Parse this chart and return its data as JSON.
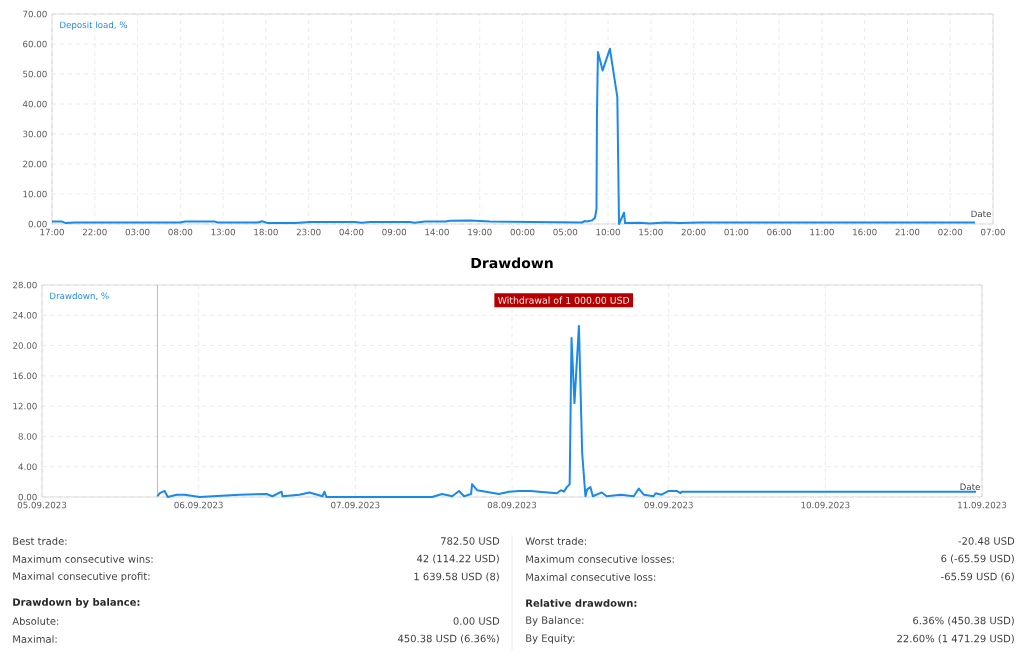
{
  "chart_data": [
    {
      "type": "line",
      "ylabel": "Deposit load, %",
      "xlabel": "Date",
      "color": "#1a8ae8",
      "grid": true,
      "xlim": [
        "2023-09-05T17:00",
        "2023-09-10T07:00"
      ],
      "ylim": [
        0,
        70
      ],
      "xticks": [
        {
          "value": "2023-09-05T17:00",
          "label": "17:00"
        },
        {
          "value": "2023-09-05T22:00",
          "label": "22:00"
        },
        {
          "value": "2023-09-06T03:00",
          "label": "03:00"
        },
        {
          "value": "2023-09-06T08:00",
          "label": "08:00"
        },
        {
          "value": "2023-09-06T13:00",
          "label": "13:00"
        },
        {
          "value": "2023-09-06T18:00",
          "label": "18:00"
        },
        {
          "value": "2023-09-06T23:00",
          "label": "23:00"
        },
        {
          "value": "2023-09-07T04:00",
          "label": "04:00"
        },
        {
          "value": "2023-09-07T09:00",
          "label": "09:00"
        },
        {
          "value": "2023-09-07T14:00",
          "label": "14:00"
        },
        {
          "value": "2023-09-07T19:00",
          "label": "19:00"
        },
        {
          "value": "2023-09-08T00:00",
          "label": "00:00"
        },
        {
          "value": "2023-09-08T05:00",
          "label": "05:00"
        },
        {
          "value": "2023-09-08T10:00",
          "label": "10:00"
        },
        {
          "value": "2023-09-08T15:00",
          "label": "15:00"
        },
        {
          "value": "2023-09-08T20:00",
          "label": "20:00"
        },
        {
          "value": "2023-09-09T01:00",
          "label": "01:00"
        },
        {
          "value": "2023-09-09T06:00",
          "label": "06:00"
        },
        {
          "value": "2023-09-09T11:00",
          "label": "11:00"
        },
        {
          "value": "2023-09-09T16:00",
          "label": "16:00"
        },
        {
          "value": "2023-09-09T21:00",
          "label": "21:00"
        },
        {
          "value": "2023-09-10T02:00",
          "label": "02:00"
        },
        {
          "value": "2023-09-10T07:00",
          "label": "07:00"
        }
      ],
      "yticks": [
        {
          "value": 0,
          "label": "0.00"
        },
        {
          "value": 10,
          "label": "10.00"
        },
        {
          "value": 20,
          "label": "20.00"
        },
        {
          "value": 30,
          "label": "30.00"
        },
        {
          "value": 40,
          "label": "40.00"
        },
        {
          "value": 50,
          "label": "50.00"
        },
        {
          "value": 60,
          "label": "60.00"
        },
        {
          "value": 70,
          "label": "70.00"
        }
      ],
      "x": [
        "2023-09-05T17:00",
        "2023-09-05T18:10",
        "2023-09-05T18:38",
        "2023-09-05T19:41",
        "2023-09-06T07:58",
        "2023-09-06T08:33",
        "2023-09-06T12:03",
        "2023-09-06T12:24",
        "2023-09-06T17:05",
        "2023-09-06T17:33",
        "2023-09-06T18:15",
        "2023-09-06T21:24",
        "2023-09-06T23:10",
        "2023-09-07T04:24",
        "2023-09-07T05:12",
        "2023-09-07T06:12",
        "2023-09-07T10:48",
        "2023-09-07T11:24",
        "2023-09-07T12:36",
        "2023-09-07T15:00",
        "2023-09-07T15:30",
        "2023-09-07T17:54",
        "2023-09-07T20:12",
        "2023-09-08T06:57",
        "2023-09-08T07:18",
        "2023-09-08T07:32",
        "2023-09-08T08:07",
        "2023-09-08T08:28",
        "2023-09-08T08:39",
        "2023-09-08T08:42",
        "2023-09-08T08:49",
        "2023-09-08T09:22",
        "2023-09-08T10:13",
        "2023-09-08T11:05",
        "2023-09-08T11:17",
        "2023-09-08T11:52",
        "2023-09-08T11:59",
        "2023-09-08T13:44",
        "2023-09-08T14:54",
        "2023-09-08T16:39",
        "2023-09-08T18:25",
        "2023-09-08T20:44",
        "2023-09-10T04:54"
      ],
      "values": [
        0.8,
        0.8,
        0.3,
        0.5,
        0.5,
        0.8,
        0.8,
        0.5,
        0.5,
        0.9,
        0.3,
        0.3,
        0.7,
        0.7,
        0.4,
        0.7,
        0.7,
        0.4,
        0.8,
        0.8,
        1.1,
        1.2,
        0.8,
        0.5,
        1.0,
        0.8,
        1.2,
        2.0,
        5.0,
        35.6,
        57.3,
        51.2,
        58.4,
        42.3,
        0.0,
        3.8,
        0.3,
        0.4,
        0.2,
        0.5,
        0.3,
        0.5,
        0.5
      ]
    },
    {
      "type": "line",
      "title": "Drawdown",
      "ylabel": "Drawdown, %",
      "xlabel": "Date",
      "color": "#1a8ae8",
      "grid": true,
      "xlim": [
        "2023-09-05",
        "2023-09-11"
      ],
      "ylim": [
        0,
        28
      ],
      "xticks": [
        {
          "value": "2023-09-05",
          "label": "05.09.2023"
        },
        {
          "value": "2023-09-06",
          "label": "06.09.2023"
        },
        {
          "value": "2023-09-07",
          "label": "07.09.2023"
        },
        {
          "value": "2023-09-08",
          "label": "08.09.2023"
        },
        {
          "value": "2023-09-09",
          "label": "09.09.2023"
        },
        {
          "value": "2023-09-10",
          "label": "10.09.2023"
        },
        {
          "value": "2023-09-11",
          "label": "11.09.2023"
        }
      ],
      "yticks": [
        {
          "value": 0,
          "label": "0.00"
        },
        {
          "value": 4,
          "label": "4.00"
        },
        {
          "value": 8,
          "label": "8.00"
        },
        {
          "value": 12,
          "label": "12.00"
        },
        {
          "value": 16,
          "label": "16.00"
        },
        {
          "value": 20,
          "label": "20.00"
        },
        {
          "value": 24,
          "label": "24.00"
        },
        {
          "value": 28,
          "label": "28.00"
        }
      ],
      "ref_lines": [
        {
          "axis": "x",
          "value": "2023-09-05T17:41",
          "color": "#aaaaaa",
          "line_style": "solid"
        }
      ],
      "annotations": [
        "Withdrawal of 1 000.00 USD"
      ],
      "x": [
        "2023-09-05T17:41",
        "2023-09-05T18:03",
        "2023-09-05T18:47",
        "2023-09-05T19:16",
        "2023-09-05T20:38",
        "2023-09-05T21:52",
        "2023-09-06T00:09",
        "2023-09-06T06:16",
        "2023-09-06T10:23",
        "2023-09-06T11:18",
        "2023-09-06T12:42",
        "2023-09-06T12:50",
        "2023-09-06T15:26",
        "2023-09-06T16:58",
        "2023-09-06T18:58",
        "2023-09-06T19:16",
        "2023-09-06T19:34",
        "2023-09-07T01:41",
        "2023-09-07T11:46",
        "2023-09-07T13:18",
        "2023-09-07T14:50",
        "2023-09-07T15:53",
        "2023-09-07T16:39",
        "2023-09-07T17:44",
        "2023-09-07T17:53",
        "2023-09-07T18:39",
        "2023-09-07T22:00",
        "2023-09-07T23:33",
        "2023-09-08T01:05",
        "2023-09-08T02:54",
        "2023-09-08T04:08",
        "2023-09-08T06:53",
        "2023-09-08T07:29",
        "2023-09-08T07:57",
        "2023-09-08T08:24",
        "2023-09-08T08:50",
        "2023-09-08T09:07",
        "2023-09-08T09:34",
        "2023-09-08T10:15",
        "2023-09-08T10:45",
        "2023-09-08T11:15",
        "2023-09-08T11:31",
        "2023-09-08T12:01",
        "2023-09-08T12:23",
        "2023-09-08T13:45",
        "2023-09-08T14:31",
        "2023-09-08T16:39",
        "2023-09-08T18:39",
        "2023-09-08T19:25",
        "2023-09-08T20:11",
        "2023-09-08T21:41",
        "2023-09-08T22:00",
        "2023-09-08T22:55",
        "2023-09-09T00:00",
        "2023-09-09T01:13",
        "2023-09-09T01:49",
        "2023-09-09T01:59",
        "2023-09-10T23:05"
      ],
      "values": [
        0.1,
        0.5,
        0.8,
        0.0,
        0.3,
        0.3,
        0.0,
        0.3,
        0.4,
        0.1,
        0.7,
        0.1,
        0.3,
        0.6,
        0.1,
        0.7,
        0.0,
        0.0,
        0.0,
        0.4,
        0.1,
        0.8,
        0.1,
        0.4,
        1.7,
        0.9,
        0.4,
        0.7,
        0.8,
        0.8,
        0.7,
        0.5,
        0.9,
        0.7,
        1.3,
        1.7,
        21.0,
        12.4,
        22.6,
        5.8,
        0.1,
        1.0,
        1.3,
        0.1,
        0.6,
        0.1,
        0.3,
        0.1,
        1.1,
        0.3,
        0.1,
        0.5,
        0.3,
        0.8,
        0.8,
        0.5,
        0.7,
        0.7
      ]
    },
    {
      "type": "other",
      "annotations": [
        "Best trade:",
        "782.50 USD",
        "Maximum consecutive wins:",
        "42 (114.22 USD)",
        "Maximal consecutive profit:",
        "1 639.58 USD (8)",
        "Drawdown by balance:",
        "Absolute:",
        "0.00 USD",
        "Maximal:",
        "450.38 USD (6.36%)",
        "Worst trade:",
        "-20.48 USD",
        "Maximum consecutive losses:",
        "6 (-65.59 USD)",
        "Maximal consecutive loss:",
        "-65.59 USD (6)",
        "Relative drawdown:",
        "By Balance:",
        "6.36% (450.38 USD)",
        "By Equity:",
        "22.60% (1 471.29 USD)"
      ]
    }
  ]
}
